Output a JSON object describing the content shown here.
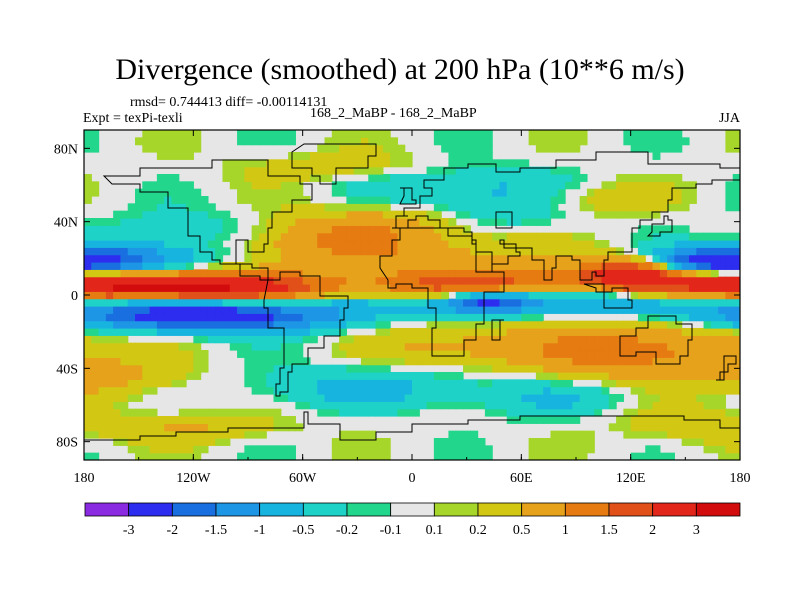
{
  "chart_data": {
    "type": "heatmap",
    "title": "Divergence (smoothed) at 200 hPa (10**6 m/s)",
    "stats_text": "rmsd= 0.744413 diff= -0.00114131",
    "experiment": "Expt = texPi-texli",
    "experiment_label": "168_2_MaBP - 168_2_MaBP",
    "season": "JJA",
    "x_ticks": [
      "180",
      "120W",
      "60W",
      "0",
      "60E",
      "120E",
      "180"
    ],
    "x_tick_values": [
      -180,
      -120,
      -60,
      0,
      60,
      120,
      180
    ],
    "y_ticks": [
      "80N",
      "40N",
      "0",
      "40S",
      "80S"
    ],
    "y_tick_values": [
      80,
      40,
      0,
      -40,
      -80
    ],
    "xlim": [
      -180,
      180
    ],
    "ylim": [
      -90,
      90
    ],
    "colorbar_labels": [
      "-3",
      "-2",
      "-1.5",
      "-1",
      "-0.5",
      "-0.2",
      "-0.1",
      "0.1",
      "0.2",
      "0.5",
      "1",
      "1.5",
      "2",
      "3"
    ],
    "colorbar_levels": [
      -3,
      -2,
      -1.5,
      -1,
      -0.5,
      -0.2,
      -0.1,
      0.1,
      0.2,
      0.5,
      1,
      1.5,
      2,
      3
    ],
    "colorbar_colors": [
      "#8a2be2",
      "#2d2df0",
      "#1a6fe0",
      "#1e96e6",
      "#18b4e0",
      "#1ed2c8",
      "#22d68c",
      "#e6e6e6",
      "#a6d62a",
      "#d2c814",
      "#e6a21a",
      "#e67b12",
      "#e2501a",
      "#e2261a",
      "#d20c0c"
    ],
    "ocean_fill": "#e6e6e6",
    "boundary_color": "#000000"
  }
}
